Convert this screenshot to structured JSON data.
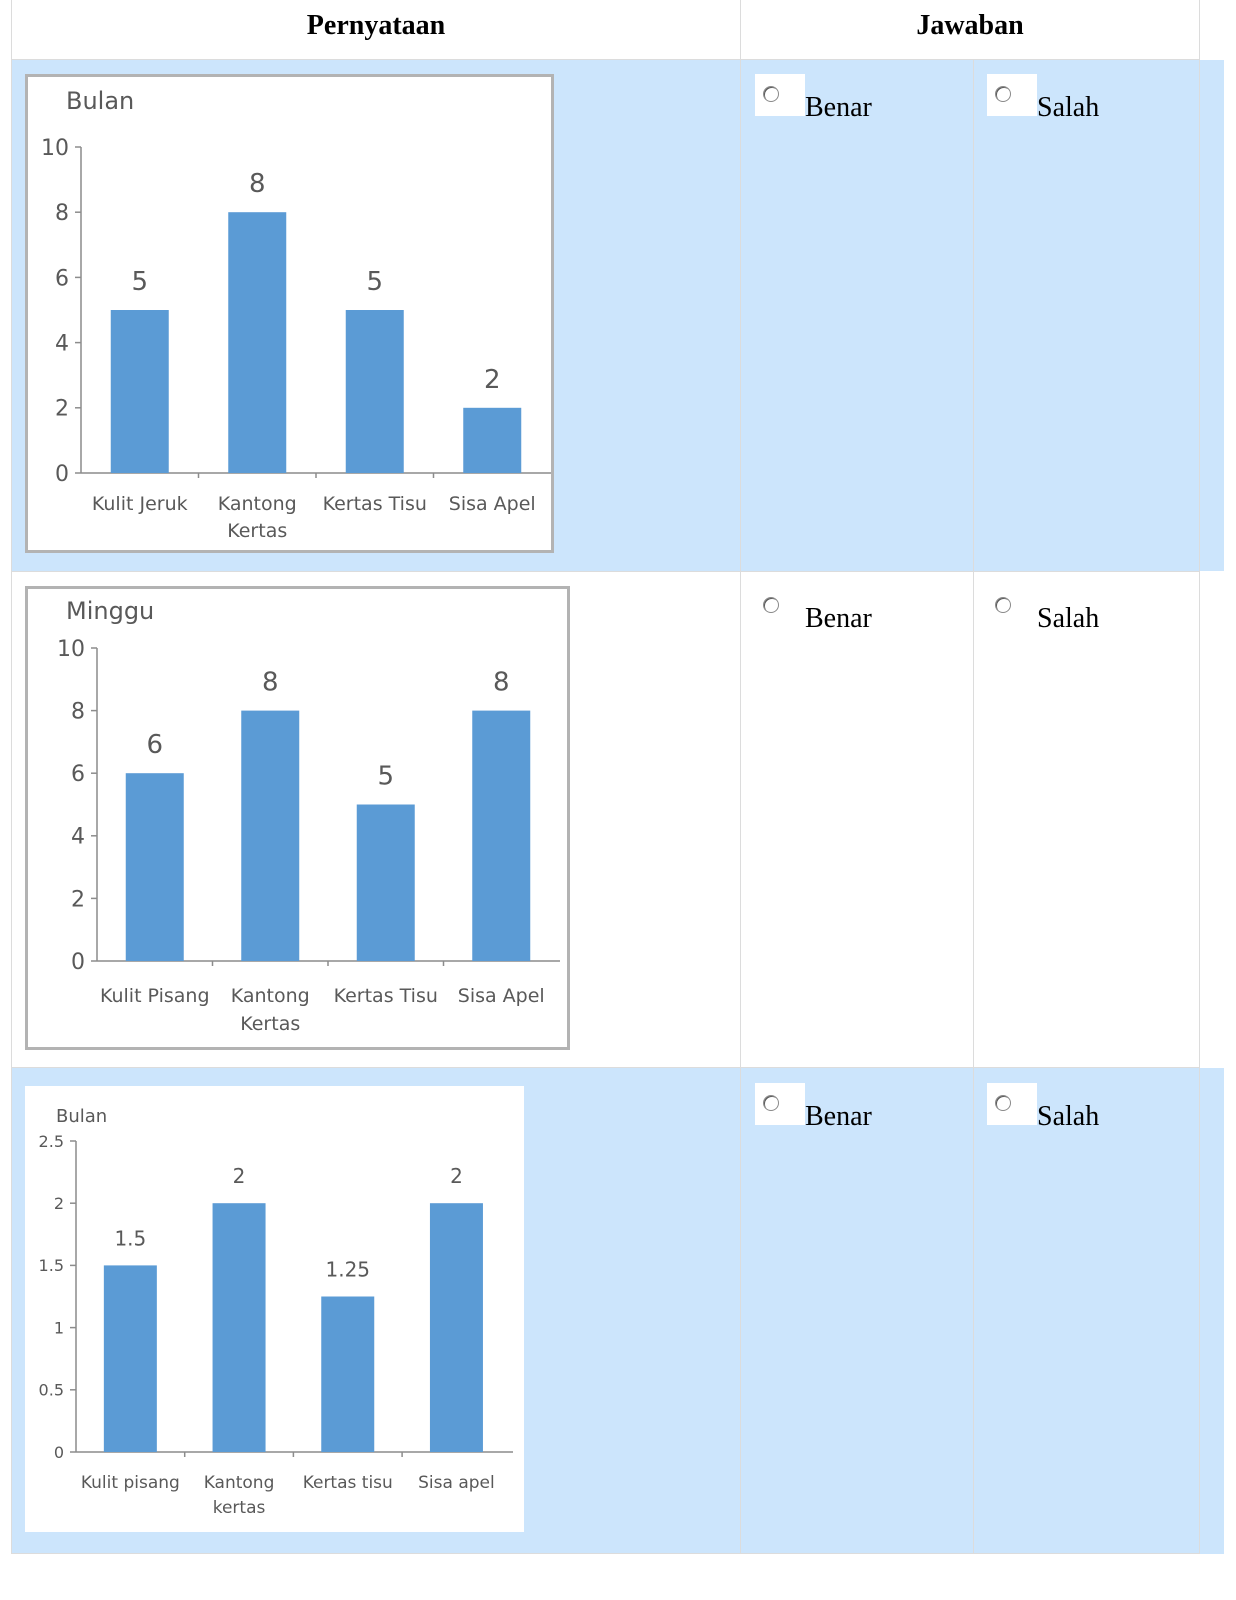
{
  "table": {
    "header": {
      "statement": "Pernyataan",
      "answer": "Jawaban"
    },
    "rows": [
      {
        "true_label": "Benar",
        "false_label": "Salah"
      },
      {
        "true_label": "Benar",
        "false_label": "Salah"
      },
      {
        "true_label": "Benar",
        "false_label": "Salah"
      }
    ]
  },
  "colors": {
    "row_highlight": "#cce5fc",
    "bar": "#5b9bd5",
    "axis_text": "#595959"
  },
  "chart_data": [
    {
      "type": "bar",
      "title": "Bulan",
      "categories": [
        "Kulit Jeruk",
        "Kantong Kertas",
        "Kertas Tisu",
        "Sisa Apel"
      ],
      "values": [
        5,
        8,
        5,
        2
      ],
      "data_labels": [
        "5",
        "8",
        "5",
        "2"
      ],
      "yticks": [
        "0",
        "2",
        "4",
        "6",
        "8",
        "10"
      ],
      "ylim": [
        0,
        10
      ],
      "grid": false
    },
    {
      "type": "bar",
      "title": "Minggu",
      "categories": [
        "Kulit Pisang",
        "Kantong Kertas",
        "Kertas Tisu",
        "Sisa Apel"
      ],
      "values": [
        6,
        8,
        5,
        8
      ],
      "data_labels": [
        "6",
        "8",
        "5",
        "8"
      ],
      "yticks": [
        "0",
        "2",
        "4",
        "6",
        "8",
        "10"
      ],
      "ylim": [
        0,
        10
      ],
      "grid": false
    },
    {
      "type": "bar",
      "title": "Bulan",
      "categories": [
        "Kulit pisang",
        "Kantong kertas",
        "Kertas tisu",
        "Sisa apel"
      ],
      "values": [
        1.5,
        2,
        1.25,
        2
      ],
      "data_labels": [
        "1.5",
        "2",
        "1.25",
        "2"
      ],
      "yticks": [
        "0",
        "0.5",
        "1",
        "1.5",
        "2",
        "2.5"
      ],
      "ylim": [
        0,
        2.5
      ],
      "grid": false
    }
  ]
}
